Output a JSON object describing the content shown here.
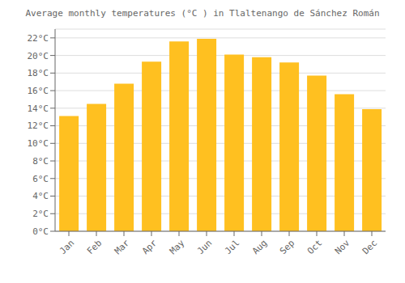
{
  "chart_data": {
    "type": "bar",
    "title": "Average monthly temperatures (°C ) in Tlaltenango de Sánchez Román",
    "categories": [
      "Jan",
      "Feb",
      "Mar",
      "Apr",
      "May",
      "Jun",
      "Jul",
      "Aug",
      "Sep",
      "Oct",
      "Nov",
      "Dec"
    ],
    "values": [
      13.1,
      14.5,
      16.8,
      19.3,
      21.6,
      21.9,
      20.1,
      19.8,
      19.2,
      17.7,
      15.6,
      13.9
    ],
    "color": "#FFC020",
    "ylim": [
      0,
      23
    ],
    "yticks": [
      {
        "value": 0,
        "label": "0°C"
      },
      {
        "value": 2,
        "label": "2°C"
      },
      {
        "value": 4,
        "label": "4°C"
      },
      {
        "value": 6,
        "label": "6°C"
      },
      {
        "value": 8,
        "label": "8°C"
      },
      {
        "value": 10,
        "label": "10°C"
      },
      {
        "value": 12,
        "label": "12°C"
      },
      {
        "value": 14,
        "label": "14°C"
      },
      {
        "value": 16,
        "label": "16°C"
      },
      {
        "value": 18,
        "label": "18°C"
      },
      {
        "value": 20,
        "label": "20°C"
      },
      {
        "value": 22,
        "label": "22°C"
      }
    ],
    "grid": true
  }
}
